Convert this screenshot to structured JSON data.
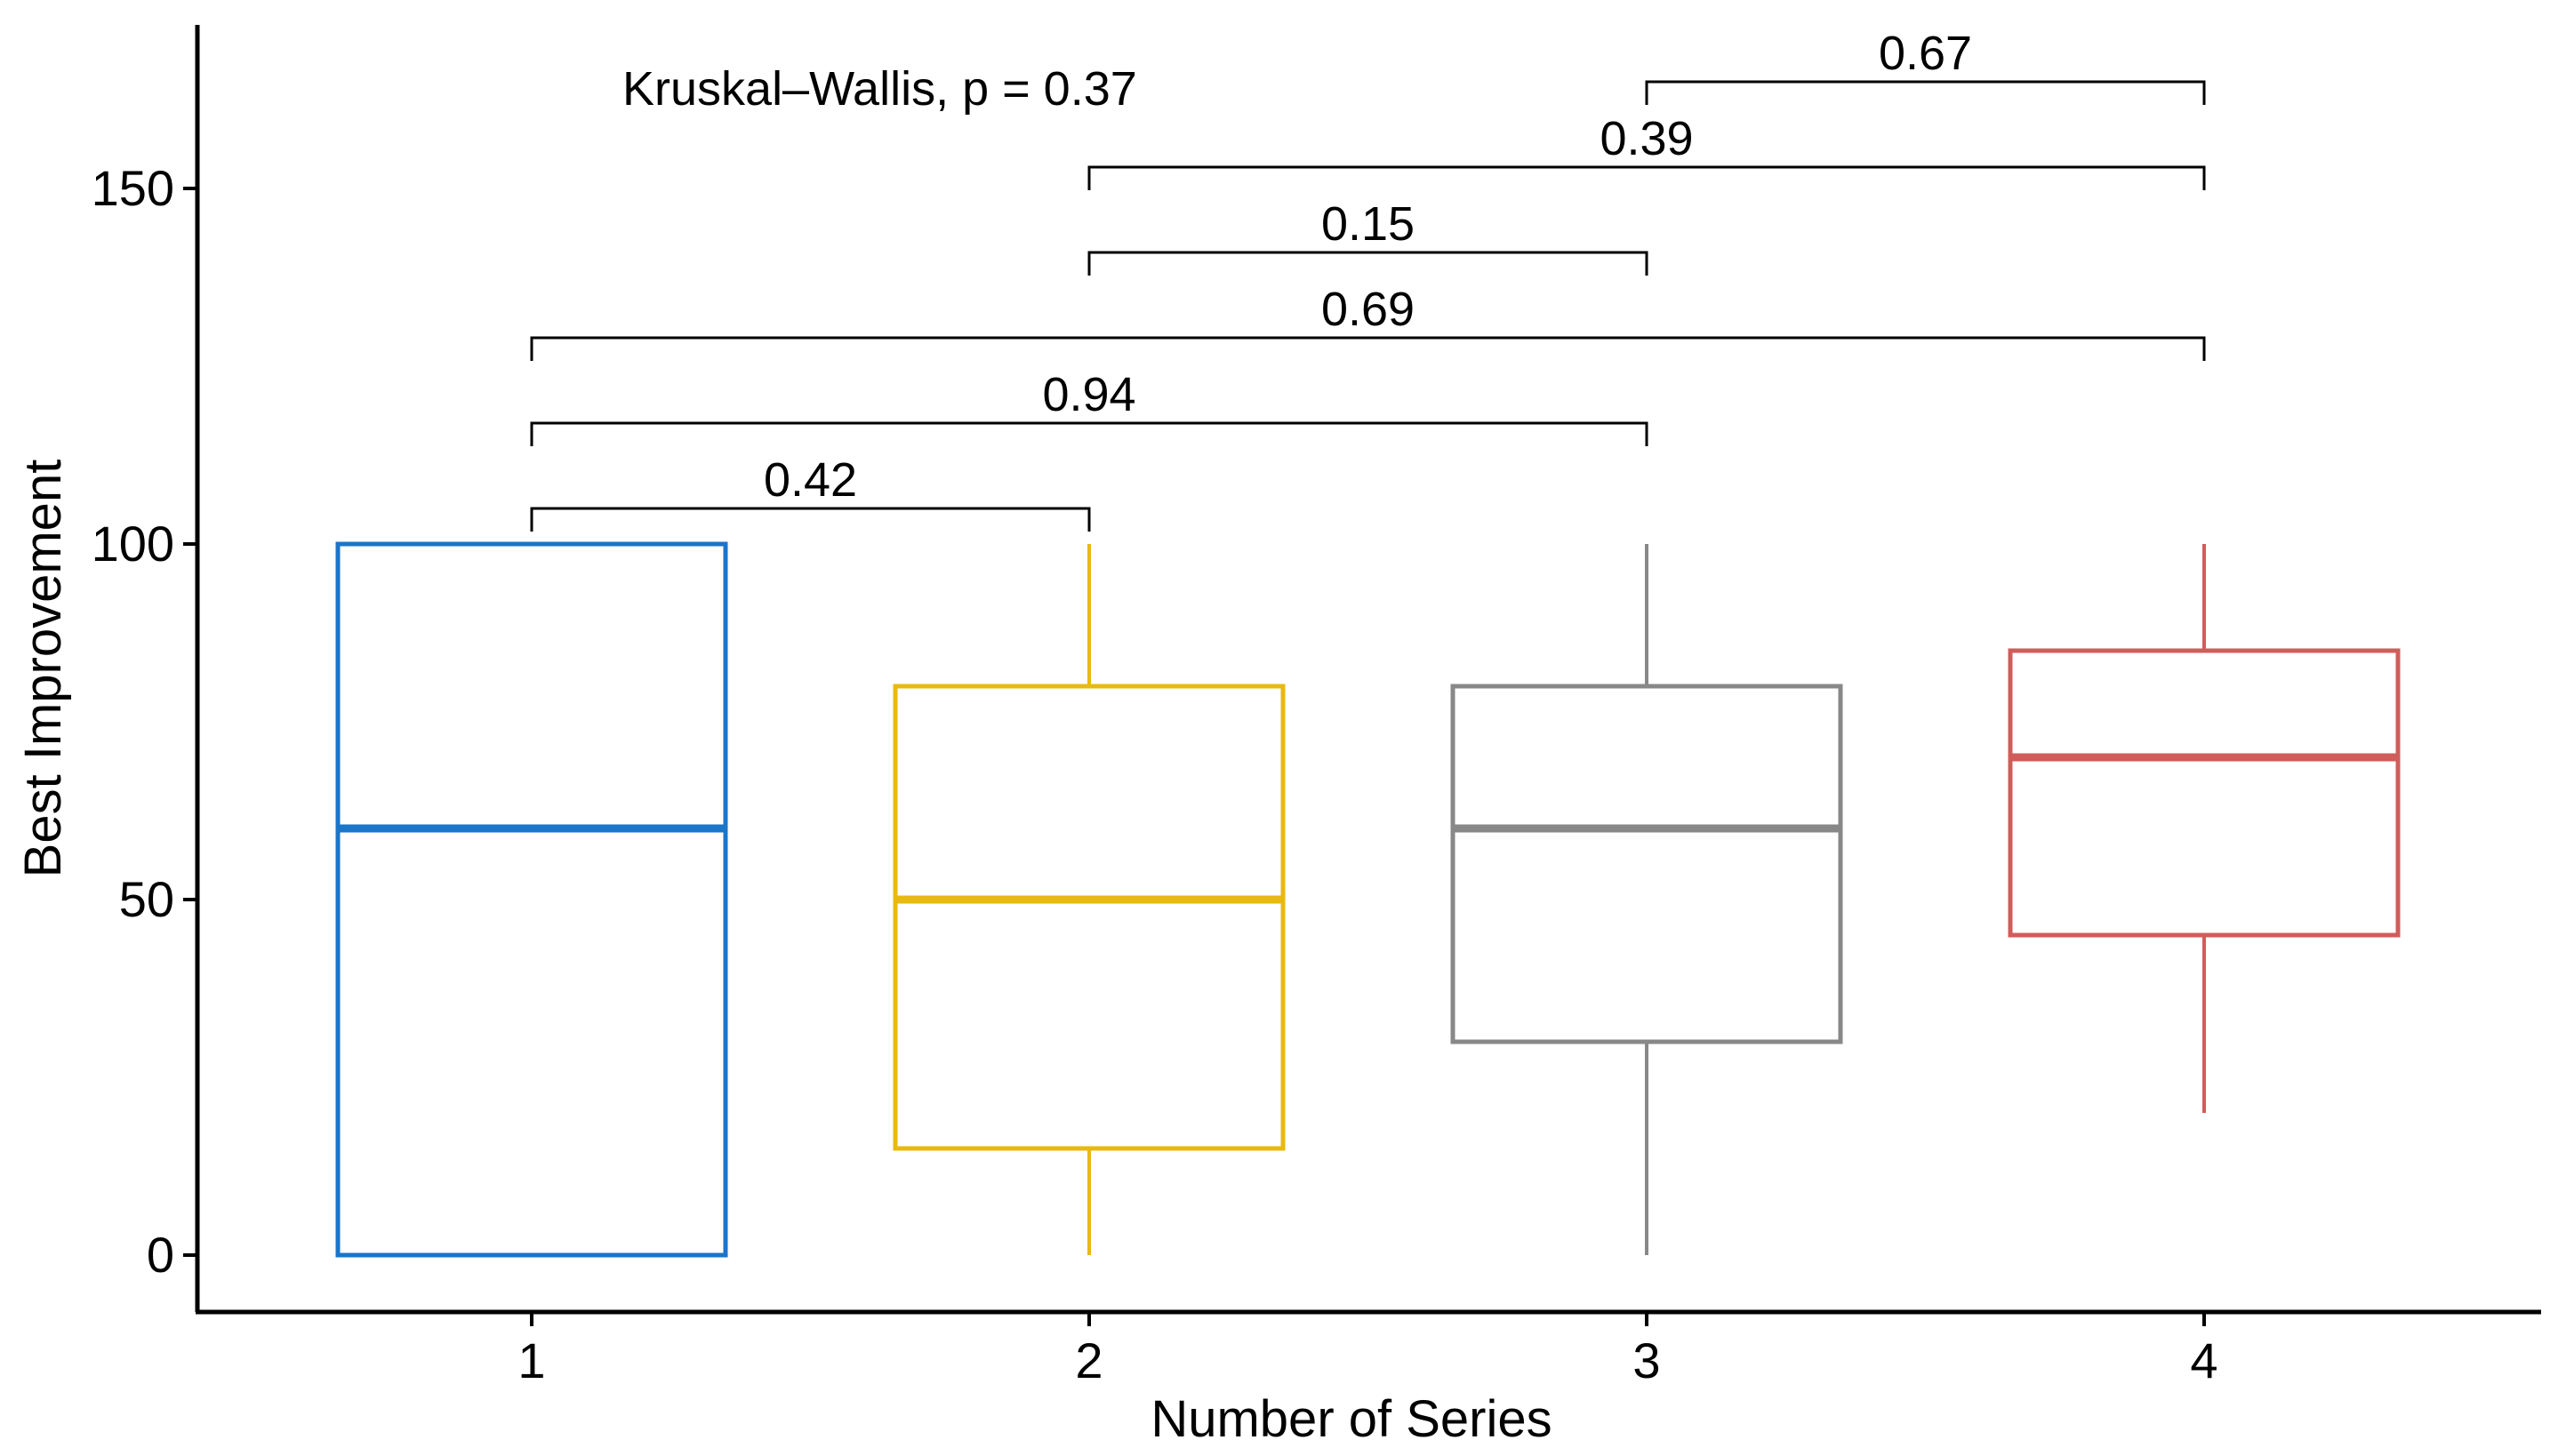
{
  "chart_data": {
    "type": "boxplot",
    "xlabel": "Number of Series",
    "ylabel": "Best Improvement",
    "ylim": [
      -8,
      173
    ],
    "y_ticks": [
      0,
      50,
      100,
      150
    ],
    "categories": [
      "1",
      "2",
      "3",
      "4"
    ],
    "boxes": [
      {
        "category": "1",
        "min": 0,
        "q1": 0,
        "median": 60,
        "q3": 100,
        "max": 100,
        "color": "#1b75c8"
      },
      {
        "category": "2",
        "min": 0,
        "q1": 15,
        "median": 50,
        "q3": 80,
        "max": 100,
        "color": "#e8b90f"
      },
      {
        "category": "3",
        "min": 0,
        "q1": 30,
        "median": 60,
        "q3": 80,
        "max": 100,
        "color": "#888888"
      },
      {
        "category": "4",
        "min": 20,
        "q1": 45,
        "median": 70,
        "q3": 85,
        "max": 100,
        "color": "#d05d5a"
      }
    ],
    "global_test": "Kruskal–Wallis, p = 0.37",
    "comparisons": [
      {
        "from": "1",
        "to": "2",
        "label": "0.42",
        "y": 105
      },
      {
        "from": "1",
        "to": "3",
        "label": "0.94",
        "y": 117
      },
      {
        "from": "1",
        "to": "4",
        "label": "0.69",
        "y": 129
      },
      {
        "from": "2",
        "to": "3",
        "label": "0.15",
        "y": 141
      },
      {
        "from": "2",
        "to": "4",
        "label": "0.39",
        "y": 153
      },
      {
        "from": "3",
        "to": "4",
        "label": "0.67",
        "y": 165
      }
    ]
  }
}
